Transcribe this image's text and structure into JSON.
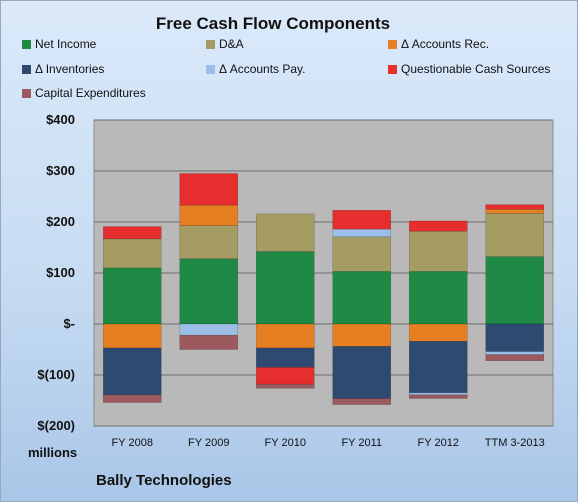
{
  "chart_data": {
    "type": "bar",
    "stacked": true,
    "title": "Free Cash Flow Components",
    "units_label": "millions",
    "company": "Bally Technologies",
    "categories": [
      "FY 2008",
      "FY 2009",
      "FY 2010",
      "FY 2011",
      "FY 2012",
      "TTM 3-2013"
    ],
    "ylim": [
      -200,
      400
    ],
    "yticks": [
      400,
      300,
      200,
      100,
      0,
      -100,
      -200
    ],
    "ytick_labels": [
      "$400",
      "$300",
      "$200",
      "$100",
      "$-",
      "$(100)",
      "$(200)"
    ],
    "grid": true,
    "legend_position": "top",
    "series": [
      {
        "name": "Net Income",
        "color": "#1e8a46",
        "values": [
          110,
          128,
          142,
          103,
          103,
          132
        ]
      },
      {
        "name": "D&A",
        "color": "#a59c63",
        "values": [
          57,
          65,
          74,
          68,
          79,
          85
        ]
      },
      {
        "name": "Δ Accounts Rec.",
        "color": "#e67e22",
        "values": [
          -47,
          40,
          -47,
          -44,
          -34,
          8
        ]
      },
      {
        "name": "Δ Inventories",
        "color": "#2f4a70",
        "values": [
          -92,
          0,
          -38,
          -102,
          -101,
          -54
        ]
      },
      {
        "name": "Δ Accounts Pay.",
        "color": "#9bbfe6",
        "values": [
          0,
          -22,
          0,
          15,
          -4,
          -6
        ]
      },
      {
        "name": "Questionable Cash Sources",
        "color": "#e62e2e",
        "values": [
          24,
          62,
          -33,
          37,
          20,
          9
        ]
      },
      {
        "name": "Capital Expenditures",
        "color": "#9c5a5e",
        "values": [
          -15,
          -28,
          -8,
          -12,
          -7,
          -12
        ]
      }
    ]
  }
}
